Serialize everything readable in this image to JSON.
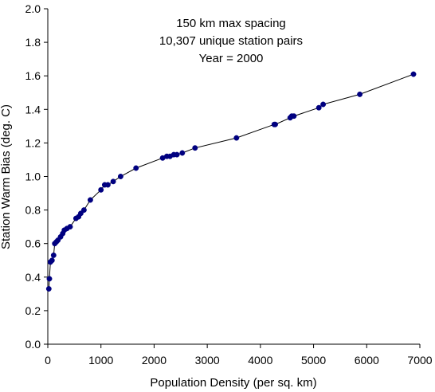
{
  "chart_data": {
    "type": "scatter",
    "xlabel": "Population Density (per sq. km)",
    "ylabel": "Station Warm Bias (deg. C)",
    "xlim": [
      0,
      7000
    ],
    "ylim": [
      0,
      2.0
    ],
    "x_ticks": [
      "0",
      "1000",
      "2000",
      "3000",
      "4000",
      "5000",
      "6000",
      "7000"
    ],
    "y_ticks": [
      "0.0",
      "0.2",
      "0.4",
      "0.6",
      "0.8",
      "1.0",
      "1.2",
      "1.4",
      "1.6",
      "1.8",
      "2.0"
    ],
    "x_tick_values": [
      0,
      1000,
      2000,
      3000,
      4000,
      5000,
      6000,
      7000
    ],
    "y_tick_values": [
      0,
      0.2,
      0.4,
      0.6,
      0.8,
      1.0,
      1.2,
      1.4,
      1.6,
      1.8,
      2.0
    ],
    "annotation": [
      "150 km max spacing",
      "10,307 unique station pairs",
      "Year = 2000"
    ],
    "grid": false,
    "legend": "none",
    "series_color": "#000080",
    "line_color": "#000000",
    "points": [
      [
        20,
        0.33
      ],
      [
        30,
        0.39
      ],
      [
        50,
        0.49
      ],
      [
        80,
        0.5
      ],
      [
        110,
        0.53
      ],
      [
        130,
        0.6
      ],
      [
        160,
        0.61
      ],
      [
        190,
        0.62
      ],
      [
        240,
        0.64
      ],
      [
        280,
        0.66
      ],
      [
        310,
        0.68
      ],
      [
        360,
        0.69
      ],
      [
        420,
        0.7
      ],
      [
        530,
        0.75
      ],
      [
        580,
        0.76
      ],
      [
        620,
        0.78
      ],
      [
        680,
        0.8
      ],
      [
        800,
        0.86
      ],
      [
        1000,
        0.92
      ],
      [
        1070,
        0.95
      ],
      [
        1130,
        0.95
      ],
      [
        1230,
        0.97
      ],
      [
        1370,
        1.0
      ],
      [
        1660,
        1.05
      ],
      [
        2160,
        1.11
      ],
      [
        2240,
        1.12
      ],
      [
        2300,
        1.12
      ],
      [
        2370,
        1.13
      ],
      [
        2430,
        1.13
      ],
      [
        2530,
        1.14
      ],
      [
        2770,
        1.17
      ],
      [
        3550,
        1.23
      ],
      [
        4260,
        1.31
      ],
      [
        4280,
        1.31
      ],
      [
        4560,
        1.35
      ],
      [
        4590,
        1.36
      ],
      [
        4630,
        1.36
      ],
      [
        5100,
        1.41
      ],
      [
        5180,
        1.43
      ],
      [
        5870,
        1.49
      ],
      [
        6880,
        1.61
      ]
    ]
  }
}
